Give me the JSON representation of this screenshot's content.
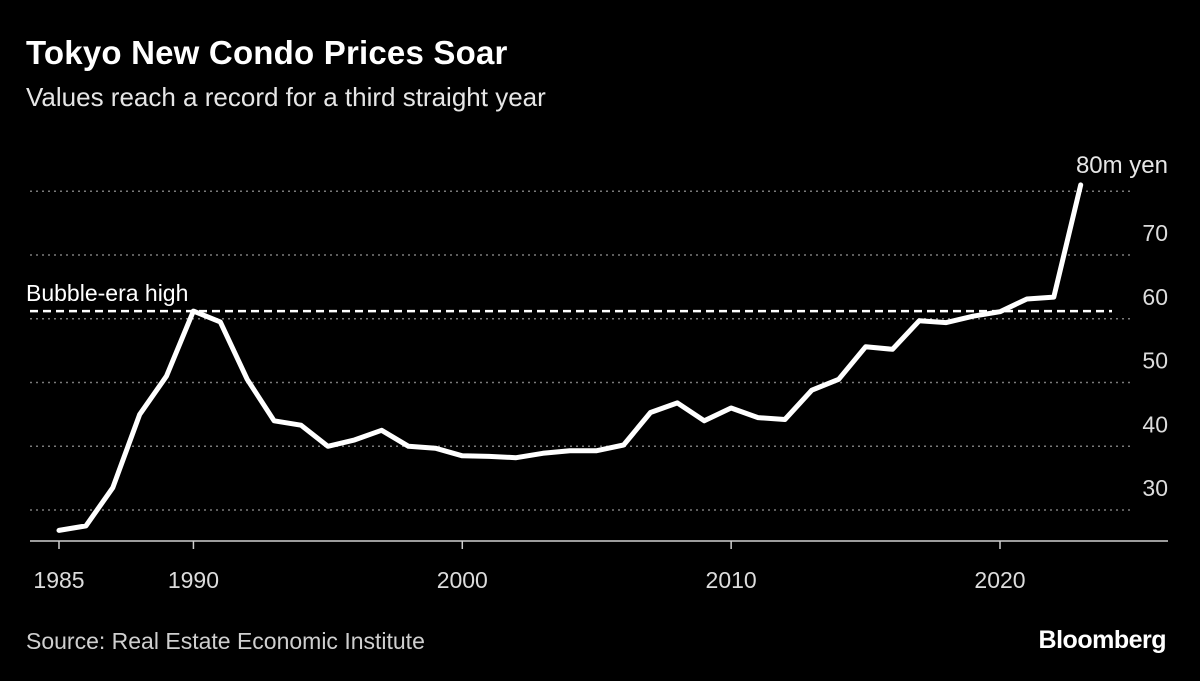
{
  "header": {
    "title": "Tokyo New Condo Prices Soar",
    "subtitle": "Values reach a record for a third straight year"
  },
  "footer": {
    "source": "Source: Real Estate Economic Institute",
    "brand": "Bloomberg"
  },
  "colors": {
    "background": "#000000",
    "line": "#ffffff",
    "grid": "#7a7a7a",
    "text": "#ffffff"
  },
  "chart_data": {
    "type": "line",
    "title": "Tokyo New Condo Prices Soar",
    "subtitle": "Values reach a record for a third straight year",
    "xlabel": "",
    "ylabel": "",
    "unit_label": "80m yen",
    "xlim": [
      1984,
      2025
    ],
    "ylim": [
      25,
      80
    ],
    "grid": true,
    "legend": "none",
    "x_ticks": [
      {
        "value": 1985,
        "label": "1985"
      },
      {
        "value": 1990,
        "label": "1990"
      },
      {
        "value": 2000,
        "label": "2000"
      },
      {
        "value": 2010,
        "label": "2010"
      },
      {
        "value": 2020,
        "label": "2020"
      }
    ],
    "y_ticks": [
      {
        "value": 30,
        "label": "30"
      },
      {
        "value": 40,
        "label": "40"
      },
      {
        "value": 50,
        "label": "50"
      },
      {
        "value": 60,
        "label": "60"
      },
      {
        "value": 70,
        "label": "70"
      },
      {
        "value": 80,
        "label": ""
      }
    ],
    "reference_line": {
      "value": 61.2,
      "label": "Bubble-era high"
    },
    "series": [
      {
        "x": [
          1985,
          1986,
          1987,
          1988,
          1989,
          1990,
          1991,
          1992,
          1993,
          1994,
          1995,
          1996,
          1997,
          1998,
          1999,
          2000,
          2001,
          2002,
          2003,
          2004,
          2005,
          2006,
          2007,
          2008,
          2009,
          2010,
          2011,
          2012,
          2013,
          2014,
          2015,
          2016,
          2017,
          2018,
          2019,
          2020,
          2021,
          2022,
          2023
        ],
        "values": [
          26.8,
          27.5,
          33.5,
          45.0,
          51.0,
          61.2,
          59.5,
          50.5,
          44.0,
          43.3,
          40.0,
          41.0,
          42.5,
          40.0,
          39.7,
          38.5,
          38.4,
          38.2,
          38.9,
          39.3,
          39.3,
          40.2,
          45.3,
          46.8,
          44.0,
          46.0,
          44.5,
          44.2,
          48.8,
          50.5,
          55.6,
          55.2,
          59.7,
          59.4,
          60.4,
          61.1,
          63.1,
          63.4,
          81.0
        ]
      }
    ]
  }
}
